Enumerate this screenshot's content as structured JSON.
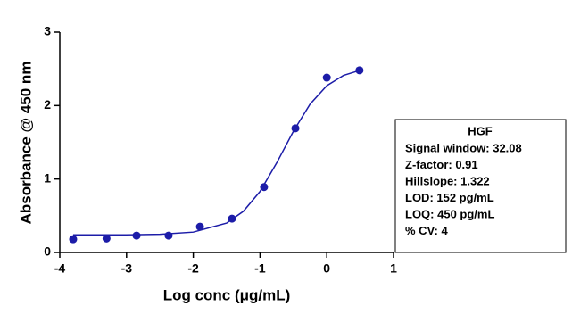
{
  "chart_data": {
    "type": "scatter",
    "x_label": "Log conc (μg/mL)",
    "y_label": "Absorbance @ 450 nm",
    "xlim": [
      -4,
      1
    ],
    "xticks": [
      -4,
      -3,
      -2,
      -1,
      0,
      1
    ],
    "ylim": [
      0,
      3
    ],
    "yticks": [
      0,
      1,
      2,
      3
    ],
    "series": [
      {
        "type": "scatter",
        "color": "#1c1ca8",
        "x": [
          -3.8,
          -3.3,
          -2.85,
          -2.37,
          -1.9,
          -1.42,
          -0.94,
          -0.47,
          0.0,
          0.49
        ],
        "values": [
          0.18,
          0.19,
          0.23,
          0.23,
          0.35,
          0.46,
          0.89,
          1.69,
          2.38,
          2.48
        ]
      },
      {
        "type": "line",
        "color": "#1c1ca8",
        "x": [
          -3.8,
          -3.0,
          -2.5,
          -2.0,
          -1.5,
          -1.25,
          -1.0,
          -0.75,
          -0.5,
          -0.25,
          0.0,
          0.25,
          0.5
        ],
        "values": [
          0.24,
          0.24,
          0.248,
          0.277,
          0.4,
          0.56,
          0.83,
          1.22,
          1.65,
          2.02,
          2.27,
          2.41,
          2.48
        ]
      }
    ],
    "annotation": {
      "title": "HGF",
      "lines": [
        "Signal window: 32.08",
        "Z-factor: 0.91",
        "Hillslope: 1.322",
        "LOD: 152 pg/mL",
        "LOQ: 450 pg/mL",
        "% CV: 4"
      ]
    }
  }
}
